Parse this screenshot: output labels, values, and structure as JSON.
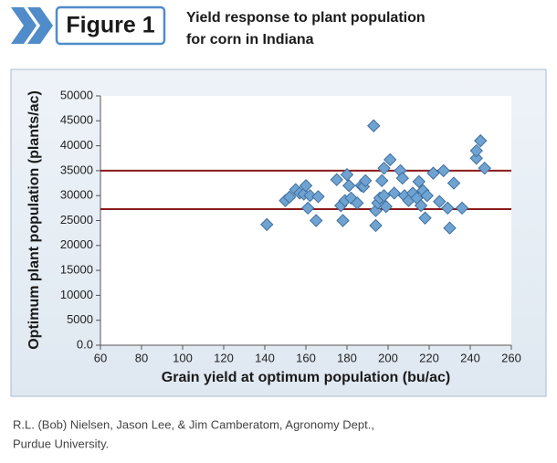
{
  "figure_label": "Figure 1",
  "caption_lines": [
    "R.L. (Bob) Nielsen, Jason Lee, & Jim Camberatom, Agronomy Dept.,",
    "Purdue University."
  ],
  "chart_data": {
    "type": "scatter",
    "title_lines": [
      "Yield response to plant population",
      "for corn in Indiana"
    ],
    "xlabel": "Grain yield at optimum population (bu/ac)",
    "ylabel": "Optimum plant population (plants/ac)",
    "xlim": [
      60,
      260
    ],
    "xticks": [
      60,
      80,
      100,
      120,
      140,
      160,
      180,
      200,
      220,
      240,
      260
    ],
    "ylim": [
      0,
      50000
    ],
    "yticks": [
      {
        "value": 0,
        "label": "0.0"
      },
      5000,
      10000,
      15000,
      20000,
      25000,
      30000,
      35000,
      40000,
      45000,
      50000
    ],
    "grid": false,
    "reference_lines": [
      {
        "value": 35000,
        "color": "#8b1a1a"
      },
      {
        "value": 27300,
        "color": "#8b1a1a"
      }
    ],
    "series": [
      {
        "color": "#6fa3d2",
        "x": [
          141,
          150,
          152,
          155,
          157,
          159,
          160,
          161,
          162,
          165,
          166,
          175,
          177,
          178,
          179,
          180,
          181,
          182,
          185,
          187,
          188,
          189,
          193,
          194,
          194,
          195,
          196,
          197,
          198,
          198,
          199,
          201,
          203,
          206,
          207,
          208,
          210,
          212,
          214,
          215,
          216,
          217,
          218,
          219,
          222,
          225,
          227,
          229,
          230,
          232,
          236,
          243,
          243,
          245,
          247
        ],
        "values": [
          24200,
          29000,
          29700,
          31200,
          30500,
          30300,
          32000,
          27500,
          30000,
          25000,
          29800,
          33200,
          28000,
          25000,
          29000,
          34200,
          32000,
          29500,
          28500,
          32000,
          31800,
          33000,
          44000,
          27000,
          24000,
          28500,
          29500,
          33000,
          35500,
          30000,
          27800,
          37200,
          30500,
          35000,
          33500,
          30000,
          29000,
          30500,
          29500,
          32800,
          28000,
          31000,
          25500,
          30000,
          34500,
          28800,
          35000,
          27500,
          23500,
          32500,
          27500,
          37500,
          39000,
          41000,
          35500
        ]
      }
    ]
  }
}
